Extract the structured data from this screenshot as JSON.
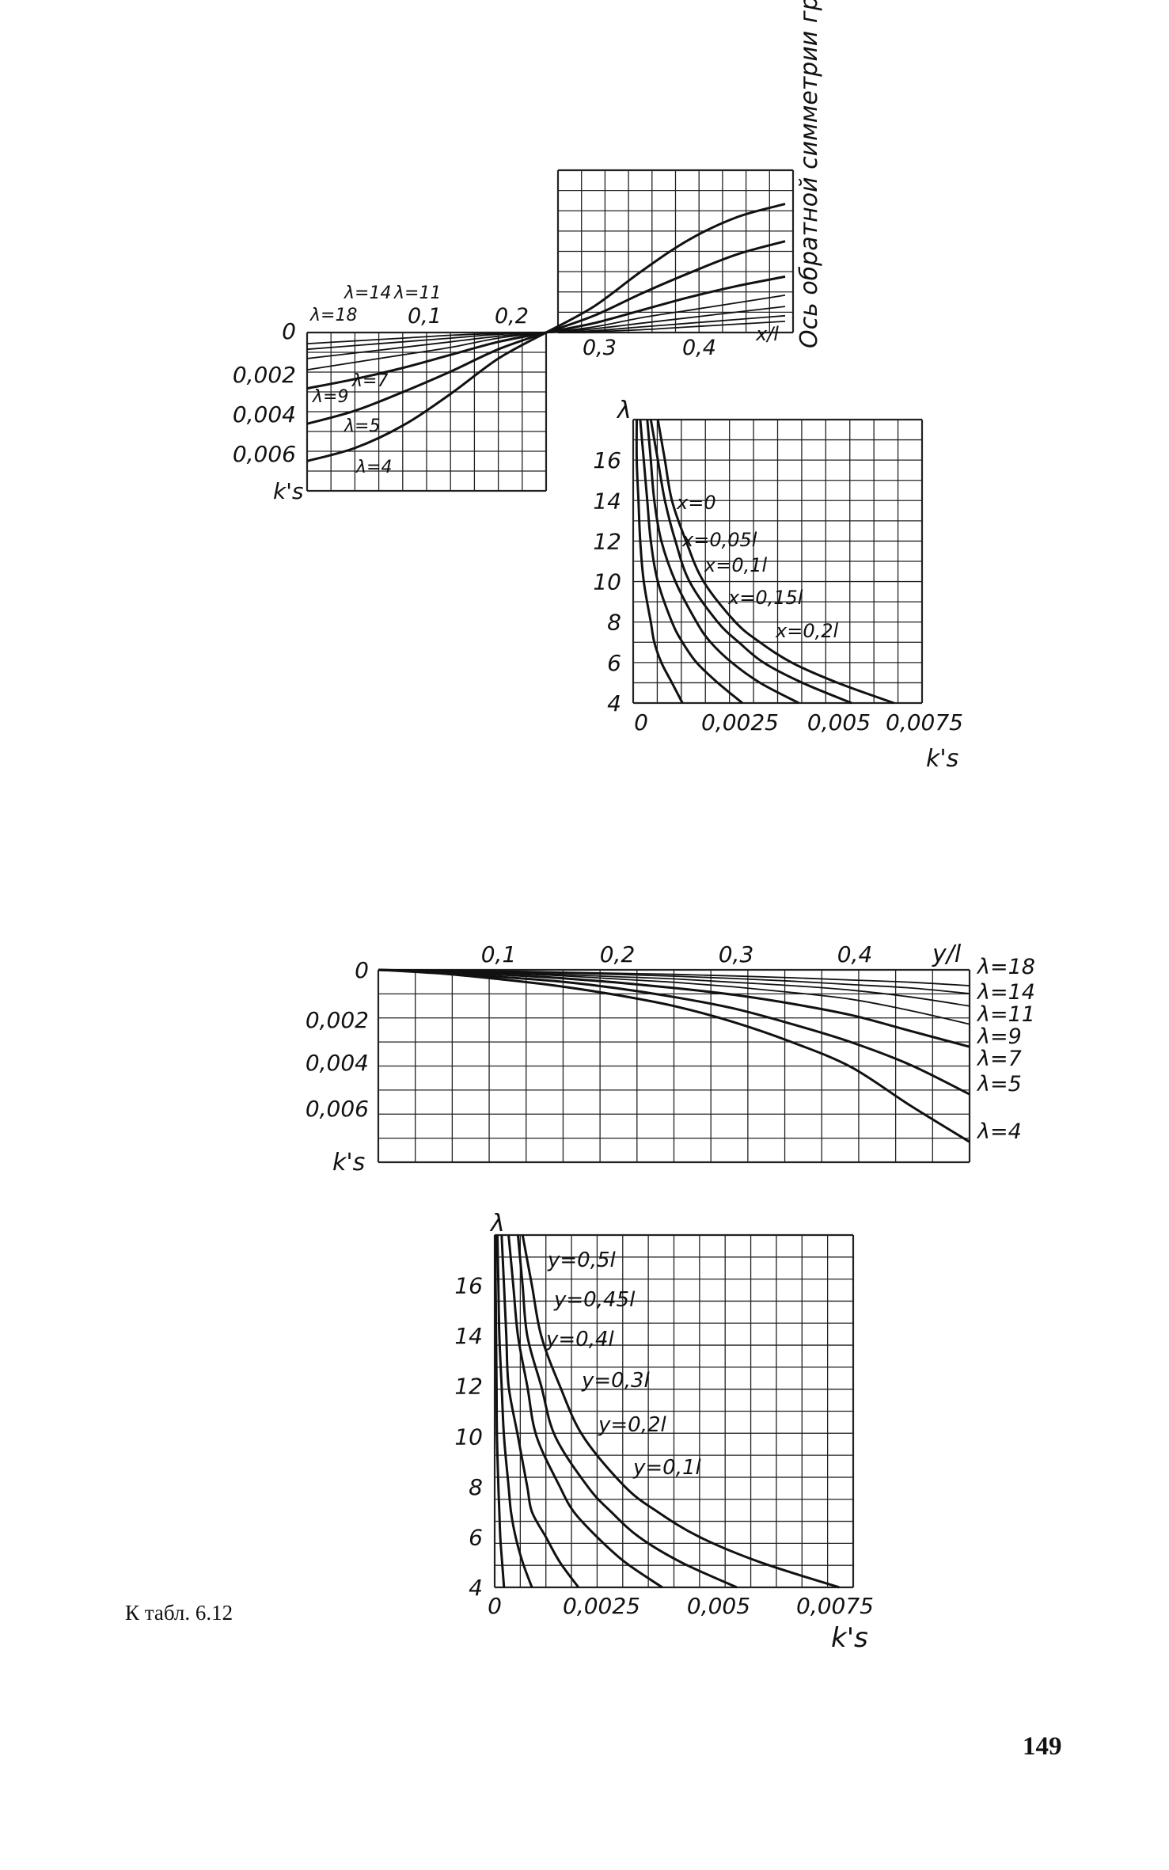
{
  "caption": "К табл. 6.12",
  "page_number": "149",
  "chart_data": [
    {
      "type": "line",
      "xlabel": "x/l",
      "ylabel": "k's",
      "x_ticks": [
        "0,1",
        "0,2",
        "0,3",
        "0,4"
      ],
      "y_ticks": [
        "0",
        "0,002",
        "0,004",
        "0,006"
      ],
      "side_note": "Ось обратной симметрии графика",
      "x": [
        0,
        0.05,
        0.1,
        0.15,
        0.2,
        0.25
      ],
      "series": [
        {
          "name": "λ=18",
          "values": [
            0.0006,
            0.00045,
            0.0003,
            0.00015,
            5e-05,
            0
          ]
        },
        {
          "name": "λ=14",
          "values": [
            0.0009,
            0.0007,
            0.0005,
            0.0003,
            0.0001,
            0
          ]
        },
        {
          "name": "λ=11",
          "values": [
            0.0014,
            0.0011,
            0.0008,
            0.0005,
            0.0002,
            0
          ]
        },
        {
          "name": "λ=9",
          "values": [
            0.002,
            0.0016,
            0.0012,
            0.0008,
            0.0003,
            0
          ]
        },
        {
          "name": "λ=7",
          "values": [
            0.003,
            0.0025,
            0.0019,
            0.0012,
            0.0005,
            0
          ]
        },
        {
          "name": "λ=5",
          "values": [
            0.0049,
            0.0042,
            0.0032,
            0.0021,
            0.0009,
            0
          ]
        },
        {
          "name": "λ=4",
          "values": [
            0.0069,
            0.0062,
            0.005,
            0.0033,
            0.0014,
            0
          ]
        }
      ]
    },
    {
      "type": "line",
      "xlabel": "k's",
      "ylabel": "λ",
      "x_ticks": [
        "0",
        "0,0025",
        "0,005",
        "0,0075"
      ],
      "y_ticks": [
        "4",
        "6",
        "8",
        "10",
        "12",
        "14",
        "16"
      ],
      "y": [
        4,
        5,
        6,
        7,
        8,
        10,
        12,
        14,
        16,
        18
      ],
      "series": [
        {
          "name": "x=0",
          "values": [
            0.0074,
            0.0058,
            0.0045,
            0.0036,
            0.0029,
            0.002,
            0.0015,
            0.0011,
            0.0009,
            0.0007
          ]
        },
        {
          "name": "x=0,05l",
          "values": [
            0.0062,
            0.0048,
            0.0037,
            0.003,
            0.0024,
            0.0016,
            0.0012,
            0.0009,
            0.0007,
            0.0005
          ]
        },
        {
          "name": "x=0,1l",
          "values": [
            0.0047,
            0.0036,
            0.0028,
            0.0022,
            0.0018,
            0.0012,
            0.0008,
            0.0006,
            0.0005,
            0.0004
          ]
        },
        {
          "name": "x=0,15l",
          "values": [
            0.0031,
            0.0024,
            0.0018,
            0.0014,
            0.0011,
            0.0007,
            0.0005,
            0.0004,
            0.0003,
            0.0002
          ]
        },
        {
          "name": "x=0,2l",
          "values": [
            0.0014,
            0.0011,
            0.0008,
            0.0006,
            0.0005,
            0.0003,
            0.0002,
            0.00015,
            0.0001,
            0.0001
          ]
        }
      ]
    },
    {
      "type": "line",
      "xlabel": "y/l",
      "ylabel": "k's",
      "x_ticks": [
        "0,1",
        "0,2",
        "0,3",
        "0,4"
      ],
      "y_ticks": [
        "0",
        "0,002",
        "0,004",
        "0,006"
      ],
      "x": [
        0,
        0.05,
        0.1,
        0.15,
        0.2,
        0.25,
        0.3,
        0.35,
        0.4,
        0.45,
        0.5
      ],
      "series": [
        {
          "name": "λ=18",
          "values": [
            0,
            2e-05,
            5e-05,
            0.0001,
            0.00015,
            0.0002,
            0.00027,
            0.00035,
            0.00045,
            0.00055,
            0.0007
          ]
        },
        {
          "name": "λ=14",
          "values": [
            0,
            3e-05,
            8e-05,
            0.00014,
            0.0002,
            0.00028,
            0.00038,
            0.0005,
            0.00065,
            0.0008,
            0.00105
          ]
        },
        {
          "name": "λ=11",
          "values": [
            0,
            4e-05,
            0.0001,
            0.0002,
            0.0003,
            0.0004,
            0.00055,
            0.0007,
            0.0009,
            0.0012,
            0.0016
          ]
        },
        {
          "name": "λ=9",
          "values": [
            0,
            5e-05,
            0.00013,
            0.00025,
            0.0004,
            0.00055,
            0.00075,
            0.001,
            0.0013,
            0.0018,
            0.0024
          ]
        },
        {
          "name": "λ=7",
          "values": [
            0,
            7e-05,
            0.0002,
            0.00035,
            0.00055,
            0.0008,
            0.0011,
            0.0015,
            0.002,
            0.0027,
            0.0034
          ]
        },
        {
          "name": "λ=5",
          "values": [
            0,
            0.0001,
            0.0003,
            0.0005,
            0.0008,
            0.0012,
            0.0017,
            0.0024,
            0.0032,
            0.0042,
            0.0055
          ]
        },
        {
          "name": "λ=4",
          "values": [
            0,
            0.00015,
            0.0004,
            0.0007,
            0.0011,
            0.0016,
            0.0023,
            0.0032,
            0.0043,
            0.006,
            0.0076
          ]
        }
      ]
    },
    {
      "type": "line",
      "xlabel": "k's",
      "ylabel": "λ",
      "x_ticks": [
        "0",
        "0,0025",
        "0,005",
        "0,0075"
      ],
      "y_ticks": [
        "4",
        "6",
        "8",
        "10",
        "12",
        "14",
        "16"
      ],
      "y": [
        4,
        5,
        6,
        7,
        8,
        10,
        12,
        14,
        16,
        18
      ],
      "series": [
        {
          "name": "y=0,5l",
          "values": [
            0.0074,
            0.0057,
            0.0044,
            0.0035,
            0.0028,
            0.0019,
            0.0014,
            0.001,
            0.0008,
            0.0006
          ]
        },
        {
          "name": "y=0,45l",
          "values": [
            0.0052,
            0.004,
            0.0031,
            0.0025,
            0.002,
            0.0013,
            0.001,
            0.0007,
            0.0006,
            0.0005
          ]
        },
        {
          "name": "y=0,4l",
          "values": [
            0.0036,
            0.0028,
            0.0022,
            0.0017,
            0.0014,
            0.0009,
            0.0007,
            0.0005,
            0.0004,
            0.0003
          ]
        },
        {
          "name": "y=0,3l",
          "values": [
            0.0018,
            0.0014,
            0.0011,
            0.0008,
            0.0007,
            0.0005,
            0.0003,
            0.00025,
            0.0002,
            0.00015
          ]
        },
        {
          "name": "y=0,2l",
          "values": [
            0.0008,
            0.0006,
            0.00045,
            0.00035,
            0.0003,
            0.0002,
            0.00015,
            0.0001,
            8e-05,
            6e-05
          ]
        },
        {
          "name": "y=0,1l",
          "values": [
            0.0002,
            0.00016,
            0.00012,
            0.0001,
            8e-05,
            5e-05,
            4e-05,
            3e-05,
            2e-05,
            2e-05
          ]
        }
      ]
    }
  ]
}
